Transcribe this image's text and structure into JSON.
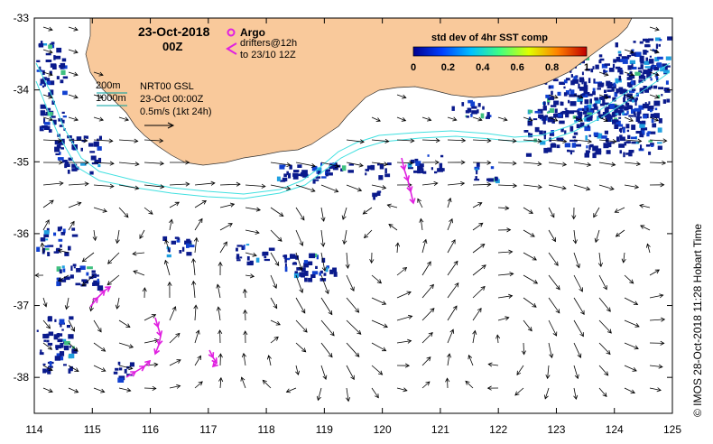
{
  "header": {
    "date": "23-Oct-2018",
    "time": "00Z"
  },
  "legend": {
    "argo_label": "Argo",
    "drifters_line1": "drifters@12h",
    "drifters_line2": "to 23/10 12Z",
    "argo_color": "#e020e0",
    "drifter_color": "#e020e0"
  },
  "land_annotations": {
    "isobath_200": "200m",
    "isobath_1000": "1000m",
    "product": "NRT00 GSL",
    "product_time": "23-Oct 00:00Z",
    "scale_label": "0.5m/s (1kt 24h)"
  },
  "colorbar": {
    "title": "std dev of 4hr SST comp",
    "ticks": [
      "0",
      "0.2",
      "0.4",
      "0.6",
      "0.8",
      "1"
    ],
    "colors": [
      "#000090",
      "#0040ff",
      "#00c0ff",
      "#40ff80",
      "#e0ff00",
      "#ff8000",
      "#c00000"
    ]
  },
  "axes": {
    "x_ticks": [
      "114",
      "115",
      "116",
      "117",
      "118",
      "119",
      "120",
      "121",
      "122",
      "123",
      "124",
      "125"
    ],
    "y_ticks": [
      "-33",
      "-34",
      "-35",
      "-36",
      "-37",
      "-38"
    ]
  },
  "credit": "© IMOS 28-Oct-2018 11:28 Hobart Time",
  "colors": {
    "land": "#f9c99b",
    "isobath": "#40e0e0",
    "frame": "#000000"
  }
}
